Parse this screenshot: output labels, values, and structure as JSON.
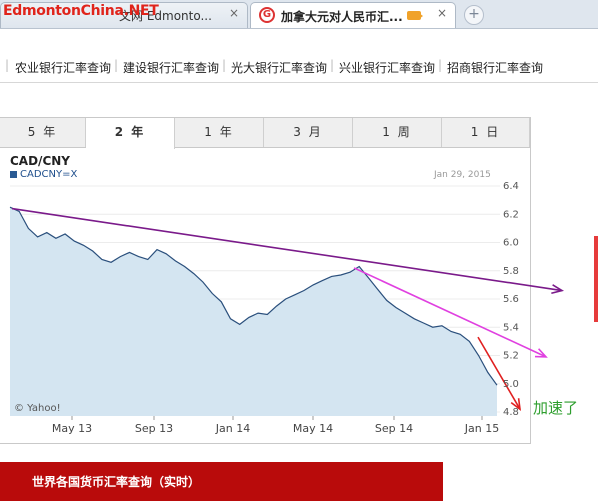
{
  "browser": {
    "watermark": "EdmontonChina.NET",
    "tab1_title": "文网 Edmonto...",
    "tab2_title": "加拿大元对人民币汇...",
    "close": "×",
    "new_tab": "+"
  },
  "links": [
    "农业银行汇率查询",
    "建设银行汇率查询",
    "光大银行汇率查询",
    "兴业银行汇率查询",
    "招商银行汇率查询"
  ],
  "periods": [
    {
      "label": "5 年",
      "active": false
    },
    {
      "label": "2 年",
      "active": true
    },
    {
      "label": "1 年",
      "active": false
    },
    {
      "label": "3 月",
      "active": false
    },
    {
      "label": "1 周",
      "active": false
    },
    {
      "label": "1 日",
      "active": false
    }
  ],
  "chart_data": {
    "type": "area",
    "title": "CAD/CNY",
    "series_name": "CADCNY=X",
    "date_label": "Jan 29, 2015",
    "credit": "© Yahoo!",
    "xlabels": [
      "May 13",
      "Sep 13",
      "Jan 14",
      "May 14",
      "Sep 14",
      "Jan 15"
    ],
    "yticks": [
      "6.4",
      "6.2",
      "6.0",
      "5.8",
      "5.6",
      "5.4",
      "5.2",
      "5.0",
      "4.8"
    ],
    "ylim": [
      4.8,
      6.4
    ],
    "fill_color": "#d4e5f1",
    "line_color": "#2a4f7c",
    "values": [
      6.25,
      6.22,
      6.1,
      6.04,
      6.07,
      6.03,
      6.06,
      6.01,
      5.98,
      5.94,
      5.88,
      5.86,
      5.9,
      5.93,
      5.9,
      5.88,
      5.95,
      5.92,
      5.87,
      5.83,
      5.78,
      5.72,
      5.64,
      5.58,
      5.46,
      5.42,
      5.47,
      5.5,
      5.49,
      5.55,
      5.6,
      5.63,
      5.66,
      5.7,
      5.73,
      5.76,
      5.77,
      5.79,
      5.83,
      5.75,
      5.67,
      5.59,
      5.54,
      5.5,
      5.46,
      5.43,
      5.4,
      5.41,
      5.37,
      5.35,
      5.3,
      5.2,
      5.08,
      4.99
    ],
    "trendlines": [
      {
        "from": 6.24,
        "to": 5.66,
        "color": "#7a1a8a"
      },
      {
        "from": 5.82,
        "to": 5.19,
        "color": "#e040e0"
      },
      {
        "from": 5.33,
        "to": 4.82,
        "color": "#e02020"
      }
    ],
    "annotation": "加速了"
  },
  "bottom_bar": "世界各国货币汇率查询（实时）"
}
